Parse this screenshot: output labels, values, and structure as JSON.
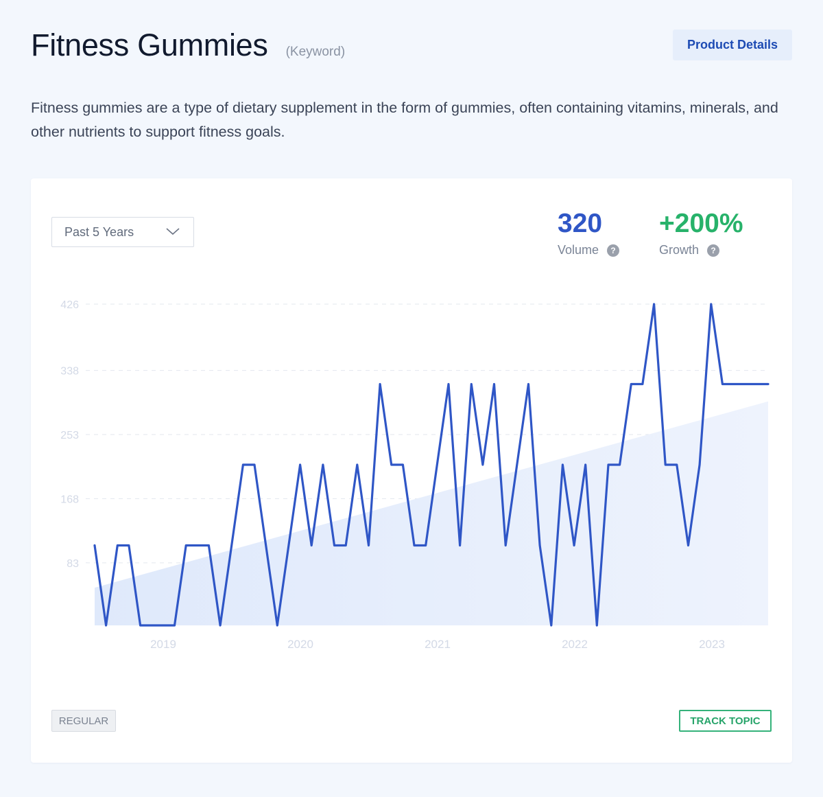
{
  "header": {
    "title": "Fitness Gummies",
    "type_label": "(Keyword)",
    "details_button": "Product Details"
  },
  "description": "Fitness gummies are a type of dietary supplement in the form of gummies, often containing vitamins, minerals, and other nutrients to support fitness goals.",
  "filters": {
    "range_selected": "Past 5 Years"
  },
  "metrics": {
    "volume_value": "320",
    "volume_label": "Volume",
    "growth_value": "+200%",
    "growth_label": "Growth"
  },
  "footer": {
    "tag_label": "REGULAR",
    "track_label": "TRACK TOPIC"
  },
  "colors": {
    "line": "#2f56c6",
    "growth": "#27b26a",
    "trend_fill": "#e6effc"
  },
  "chart_data": {
    "type": "line",
    "title": "",
    "xlabel": "",
    "ylabel": "",
    "x_ticks": [
      "2019",
      "2020",
      "2021",
      "2022",
      "2023"
    ],
    "y_ticks": [
      83,
      168,
      253,
      338,
      426
    ],
    "ylim": [
      0,
      426
    ],
    "grid": "horizontal dashed",
    "series": [
      {
        "values": [
          106,
          0,
          106,
          106,
          0,
          0,
          0,
          0,
          106,
          106,
          106,
          0,
          106,
          213,
          213,
          106,
          0,
          106,
          213,
          106,
          213,
          106,
          106,
          213,
          106,
          320,
          213,
          213,
          106,
          106,
          213,
          320,
          106,
          320,
          213,
          320,
          106,
          213,
          320,
          106,
          0,
          213,
          106,
          213,
          0,
          213,
          213,
          320,
          320,
          426,
          213,
          213,
          106,
          213,
          426,
          320,
          320,
          320,
          320,
          320
        ]
      }
    ],
    "trend": {
      "type": "area",
      "start": 50,
      "end": 297
    }
  }
}
